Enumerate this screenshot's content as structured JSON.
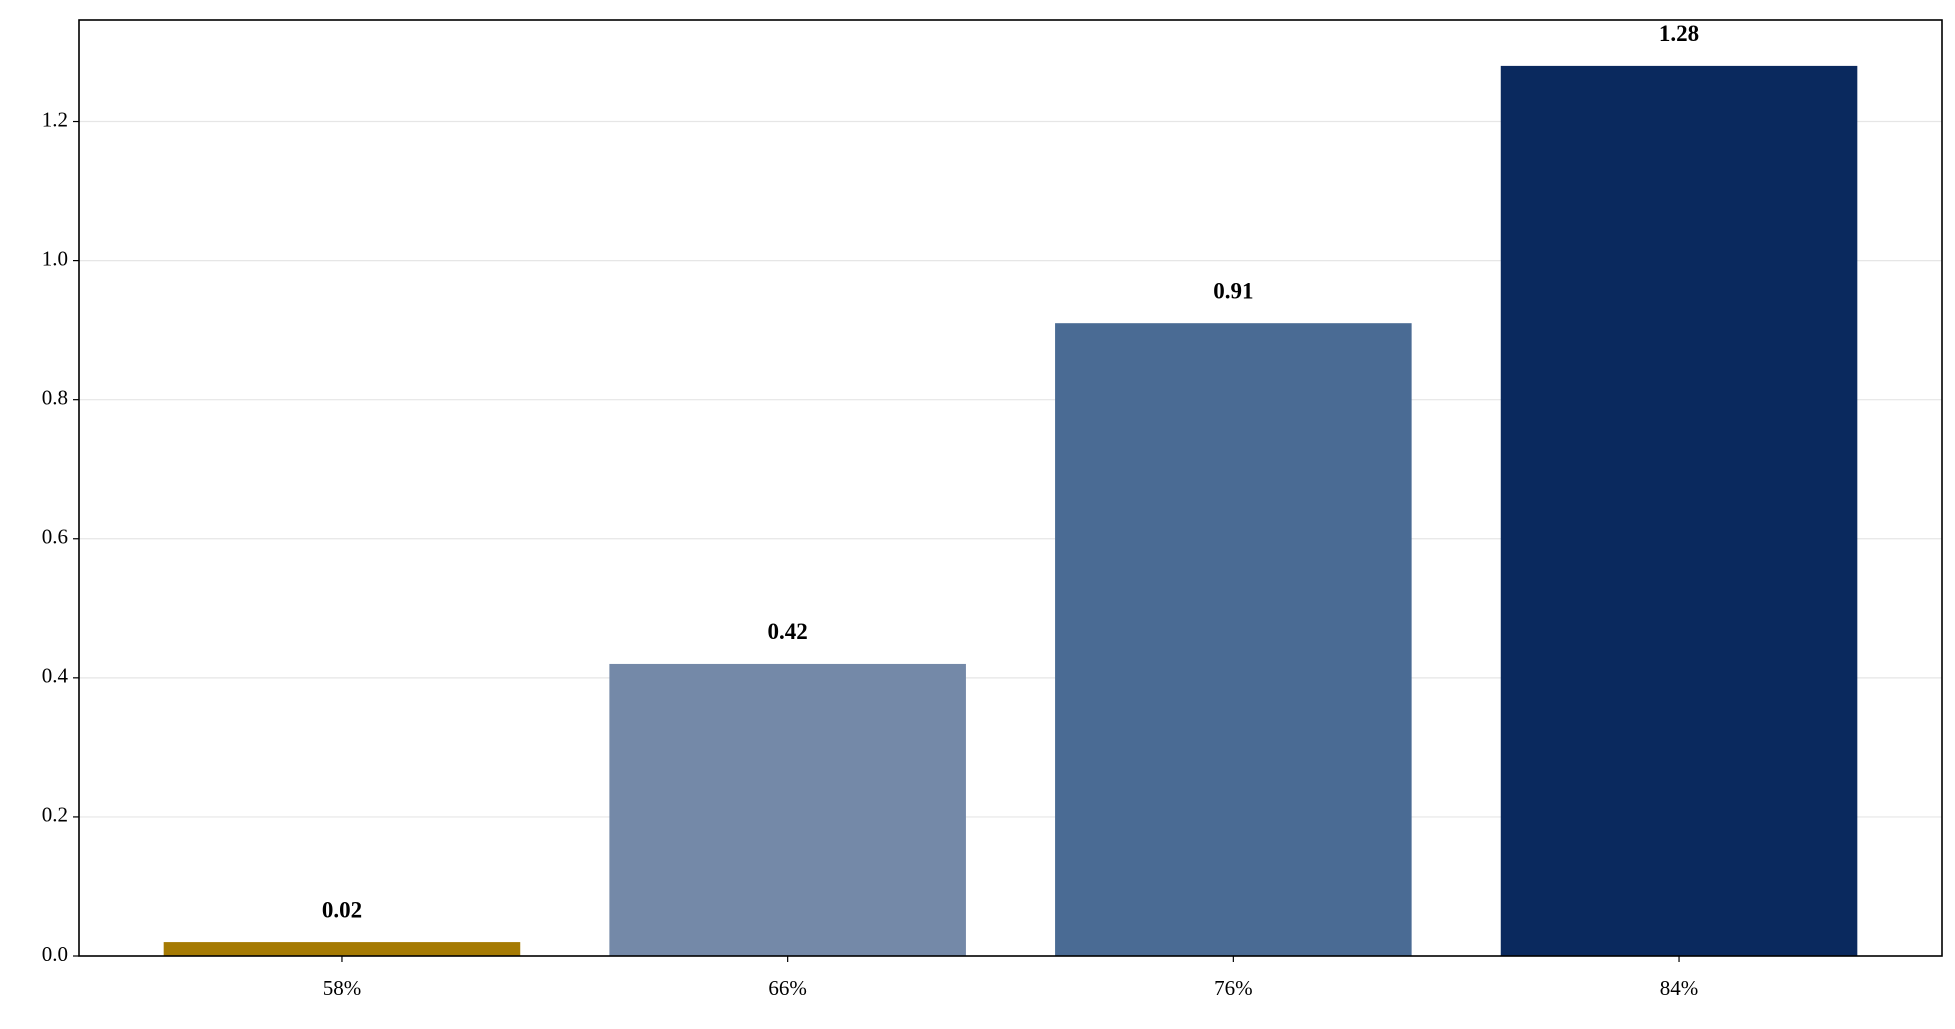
{
  "chart_data": {
    "type": "bar",
    "categories": [
      "58%",
      "66%",
      "76%",
      "84%"
    ],
    "values": [
      0.02,
      0.42,
      0.91,
      1.28
    ],
    "colors": [
      "#a57a03",
      "#7489a8",
      "#4a6b94",
      "#0a295e"
    ],
    "ylim": [
      0,
      1.346
    ],
    "yticks": [
      {
        "value": 0,
        "label": "0.0"
      },
      0.2,
      0.4,
      0.6,
      0.8,
      {
        "value": 1,
        "label": "1.0"
      },
      1.2
    ],
    "grid": true
  }
}
